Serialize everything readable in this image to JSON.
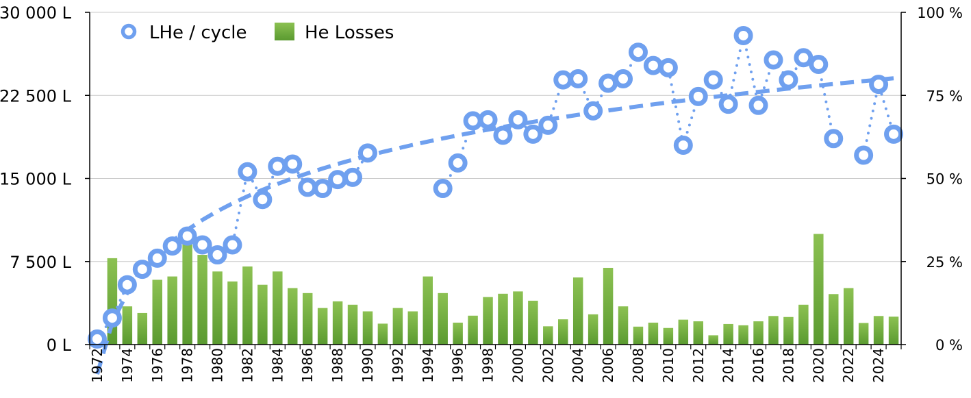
{
  "chart_data": {
    "type": "bar+line",
    "x": [
      1972,
      1973,
      1974,
      1975,
      1976,
      1977,
      1978,
      1979,
      1980,
      1981,
      1982,
      1983,
      1984,
      1985,
      1986,
      1987,
      1988,
      1989,
      1990,
      1991,
      1992,
      1993,
      1994,
      1995,
      1996,
      1997,
      1998,
      1999,
      2000,
      2001,
      2002,
      2003,
      2004,
      2005,
      2006,
      2007,
      2008,
      2009,
      2010,
      2011,
      2012,
      2013,
      2014,
      2015,
      2016,
      2017,
      2018,
      2019,
      2020,
      2021,
      2022,
      2023,
      2024,
      2025
    ],
    "x_tick_labels": [
      "1972",
      "1974",
      "1976",
      "1978",
      "1980",
      "1982",
      "1984",
      "1986",
      "1988",
      "1990",
      "1992",
      "1994",
      "1996",
      "1998",
      "2000",
      "2002",
      "2004",
      "2006",
      "2008",
      "2010",
      "2012",
      "2014",
      "2016",
      "2018",
      "2020",
      "2022",
      "2024"
    ],
    "y_left": {
      "range": [
        0,
        30000
      ],
      "ticks": [
        "0 L",
        "7 500 L",
        "15 000 L",
        "22 500 L",
        "30 000 L"
      ]
    },
    "y_right": {
      "range": [
        0,
        100
      ],
      "ticks": [
        "0 %",
        "25 %",
        "50 %",
        "75 %",
        "100 %"
      ]
    },
    "grid": "horizontal",
    "legend": {
      "placement": "top-left"
    },
    "series": [
      {
        "name": "LHe / cycle",
        "type": "line-markers",
        "axis": "left",
        "color": "#6fa0ef",
        "values": [
          500,
          2400,
          5400,
          6800,
          7800,
          8900,
          9800,
          9000,
          8100,
          9000,
          15600,
          13100,
          16100,
          16300,
          14200,
          14100,
          14900,
          15100,
          17300,
          null,
          null,
          null,
          null,
          14100,
          16400,
          20200,
          20300,
          18900,
          20300,
          19000,
          19800,
          23900,
          24000,
          21100,
          23600,
          24000,
          26400,
          25200,
          25000,
          18000,
          22400,
          23900,
          21700,
          27900,
          21600,
          25700,
          23900,
          25900,
          25300,
          18600,
          null,
          17100,
          23500,
          19000
        ]
      },
      {
        "name": "He Losses",
        "type": "bar",
        "axis": "right",
        "color": "#5a9a30",
        "values": [
          0,
          26,
          11.5,
          9.5,
          19.5,
          20.5,
          31.5,
          27,
          22,
          19,
          23.5,
          18,
          22,
          17,
          15.5,
          11,
          13,
          12,
          10,
          6.3,
          11,
          10,
          20.5,
          15.5,
          6.6,
          8.7,
          14.3,
          15.3,
          16,
          13.2,
          5.5,
          7.6,
          20.2,
          9.1,
          23.1,
          11.5,
          5.4,
          6.6,
          5,
          7.5,
          7,
          2.8,
          6.2,
          5.8,
          7,
          8.6,
          8.3,
          12,
          33.3,
          15.2,
          17,
          6.5,
          8.6,
          8.4
        ]
      }
    ],
    "trendline": {
      "series": "LHe / cycle",
      "style": "dashed",
      "color": "#6fa0ef"
    }
  }
}
